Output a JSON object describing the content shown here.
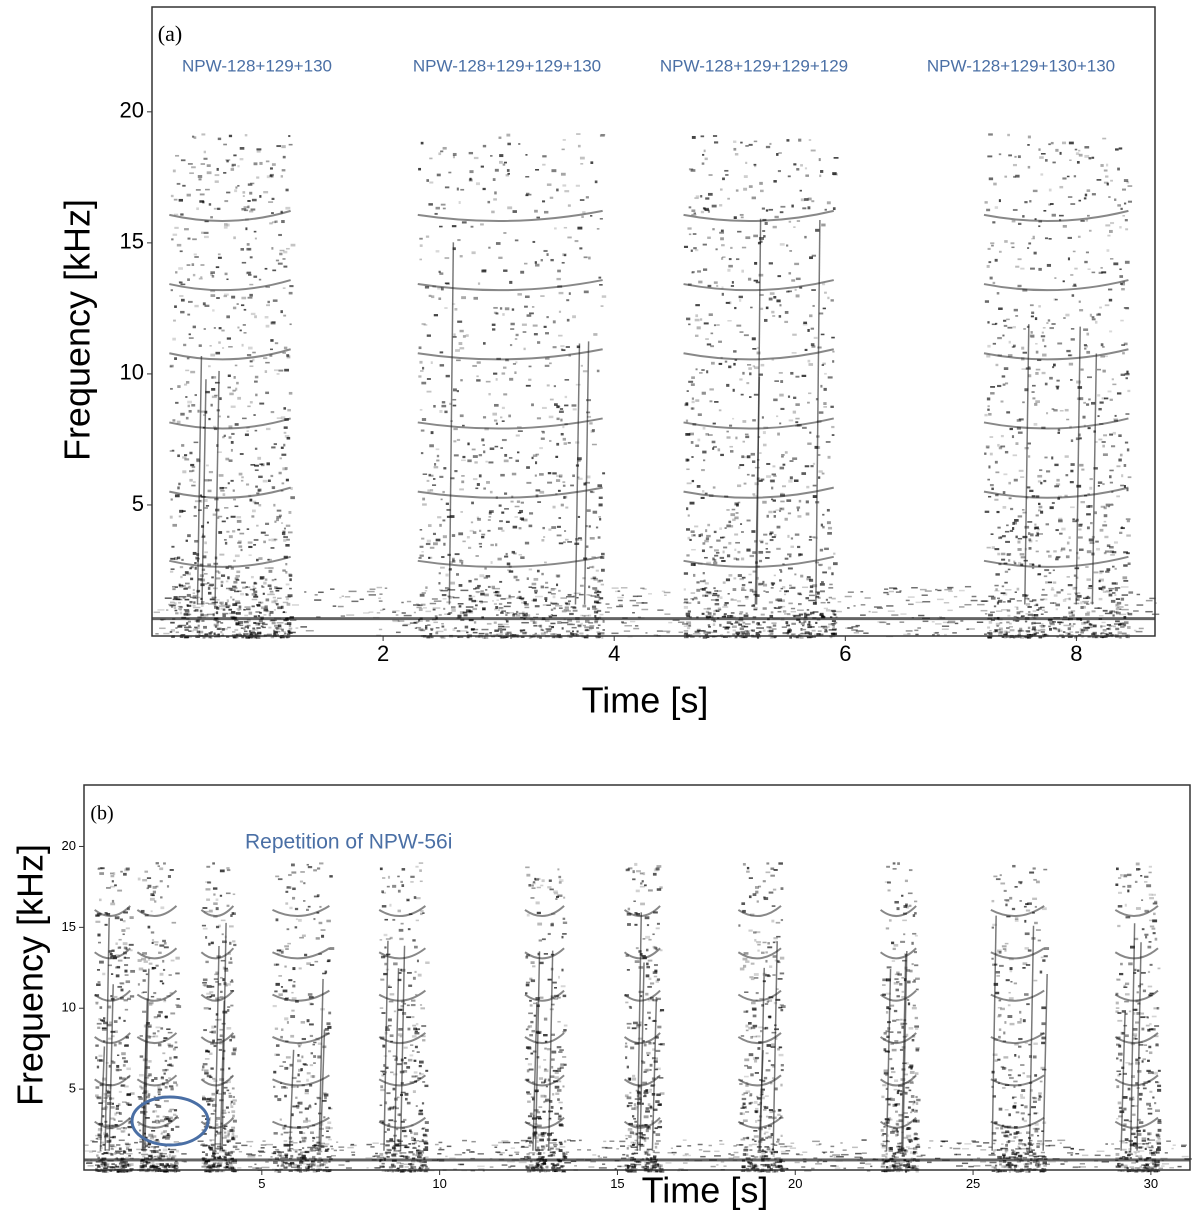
{
  "chart_data": [
    {
      "type": "spectrogram",
      "panel_label": "(a)",
      "xlabel": "Time [s]",
      "ylabel": "Frequency [kHz]",
      "annotations": [
        "NPW-128+129+130",
        "NPW-128+129+129+130",
        "NPW-128+129+129+129",
        "NPW-128+129+130+130"
      ],
      "xlim": [
        0,
        8.68
      ],
      "ylim": [
        0,
        24
      ],
      "xticks": [
        2,
        4,
        6,
        8
      ],
      "yticks": [
        5,
        10,
        15,
        20
      ]
    },
    {
      "type": "spectrogram",
      "panel_label": "(b)",
      "xlabel": "Time [s]",
      "ylabel": "Frequency [kHz]",
      "annotations": [
        "Repetition of NPW-56i"
      ],
      "xlim": [
        0,
        31.1
      ],
      "ylim": [
        0,
        23.8
      ],
      "xticks": [
        5,
        10,
        15,
        20,
        25,
        30
      ],
      "yticks": [
        5,
        10,
        15,
        20
      ]
    }
  ]
}
